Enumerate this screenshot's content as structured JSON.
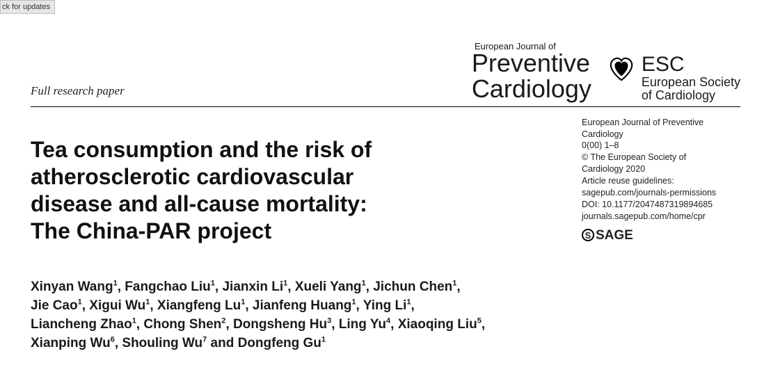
{
  "check_updates_label": "ck for updates",
  "paper_type": "Full research paper",
  "journal": {
    "superscript": "European Journal of",
    "line1": "Preventive",
    "line2": "Cardiology"
  },
  "society": {
    "abbrev": "ESC",
    "full_line1": "European Society",
    "full_line2": "of Cardiology"
  },
  "meta": {
    "line1": "European Journal of Preventive",
    "line2": "Cardiology",
    "line3": "0(00) 1–8",
    "line4": "© The European Society of",
    "line5": "Cardiology 2020",
    "line6": "Article reuse guidelines:",
    "line7": "sagepub.com/journals-permissions",
    "line8": "DOI: 10.1177/2047487319894685",
    "line9": "journals.sagepub.com/home/cpr",
    "publisher": "SAGE"
  },
  "title": {
    "l1": "Tea consumption and the risk of",
    "l2": "atherosclerotic cardiovascular",
    "l3": "disease and all-cause mortality:",
    "l4": "The China-PAR project"
  },
  "authors": [
    {
      "name": "Xinyan Wang",
      "aff": "1"
    },
    {
      "name": "Fangchao Liu",
      "aff": "1"
    },
    {
      "name": "Jianxin Li",
      "aff": "1"
    },
    {
      "name": "Xueli Yang",
      "aff": "1"
    },
    {
      "name": "Jichun Chen",
      "aff": "1"
    },
    {
      "name": "Jie Cao",
      "aff": "1"
    },
    {
      "name": "Xigui Wu",
      "aff": "1"
    },
    {
      "name": "Xiangfeng Lu",
      "aff": "1"
    },
    {
      "name": "Jianfeng Huang",
      "aff": "1"
    },
    {
      "name": "Ying Li",
      "aff": "1"
    },
    {
      "name": "Liancheng Zhao",
      "aff": "1"
    },
    {
      "name": "Chong Shen",
      "aff": "2"
    },
    {
      "name": "Dongsheng Hu",
      "aff": "3"
    },
    {
      "name": "Ling Yu",
      "aff": "4"
    },
    {
      "name": "Xiaoqing Liu",
      "aff": "5"
    },
    {
      "name": "Xianping Wu",
      "aff": "6"
    },
    {
      "name": "Shouling Wu",
      "aff": "7"
    },
    {
      "name": "Dongfeng Gu",
      "aff": "1"
    }
  ],
  "and_word": "and",
  "comma": ", "
}
